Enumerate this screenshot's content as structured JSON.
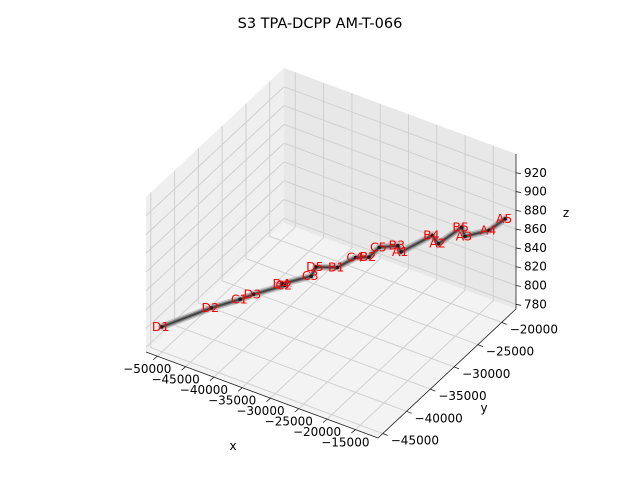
{
  "chart_data": {
    "type": "scatter3d",
    "title": "S3 TPA-DCPP AM-T-066",
    "xlabel": "x",
    "ylabel": "y",
    "zlabel": "z",
    "xlim": [
      -52000,
      -11000
    ],
    "ylim": [
      -46000,
      -17000
    ],
    "zlim": [
      775,
      940
    ],
    "x_ticks": [
      "−50000",
      "−45000",
      "−40000",
      "−35000",
      "−30000",
      "−25000",
      "−20000",
      "−15000"
    ],
    "y_ticks": [
      "−45000",
      "−40000",
      "−35000",
      "−30000",
      "−25000",
      "−20000"
    ],
    "z_ticks": [
      "780",
      "800",
      "820",
      "840",
      "860",
      "880",
      "900",
      "920"
    ],
    "grid": true,
    "label_color": "#ff0000",
    "surface_color": "#404040",
    "points": [
      {
        "label": "D1",
        "x": -50500,
        "y": -44500,
        "z": 798
      },
      {
        "label": "D2",
        "x": -45500,
        "y": -40000,
        "z": 808
      },
      {
        "label": "C1",
        "x": -42500,
        "y": -37500,
        "z": 812
      },
      {
        "label": "D3",
        "x": -41000,
        "y": -36500,
        "z": 816
      },
      {
        "label": "C2",
        "x": -38000,
        "y": -33500,
        "z": 818
      },
      {
        "label": "D4",
        "x": -38000,
        "y": -34000,
        "z": 822
      },
      {
        "label": "C3",
        "x": -35000,
        "y": -31500,
        "z": 825
      },
      {
        "label": "D5",
        "x": -35000,
        "y": -30500,
        "z": 830
      },
      {
        "label": "B1",
        "x": -32500,
        "y": -29000,
        "z": 828
      },
      {
        "label": "C4",
        "x": -30500,
        "y": -27500,
        "z": 836
      },
      {
        "label": "B2",
        "x": -29000,
        "y": -26500,
        "z": 835
      },
      {
        "label": "C5",
        "x": -28000,
        "y": -25500,
        "z": 843
      },
      {
        "label": "B3",
        "x": -26000,
        "y": -24000,
        "z": 842
      },
      {
        "label": "A1",
        "x": -25000,
        "y": -24500,
        "z": 840
      },
      {
        "label": "B4",
        "x": -22000,
        "y": -21500,
        "z": 850
      },
      {
        "label": "A2",
        "x": -20500,
        "y": -22000,
        "z": 847
      },
      {
        "label": "B5",
        "x": -18500,
        "y": -19500,
        "z": 857
      },
      {
        "label": "A3",
        "x": -17500,
        "y": -20000,
        "z": 852
      },
      {
        "label": "A4",
        "x": -14500,
        "y": -18500,
        "z": 858
      },
      {
        "label": "A5",
        "x": -12500,
        "y": -17500,
        "z": 870
      }
    ]
  }
}
